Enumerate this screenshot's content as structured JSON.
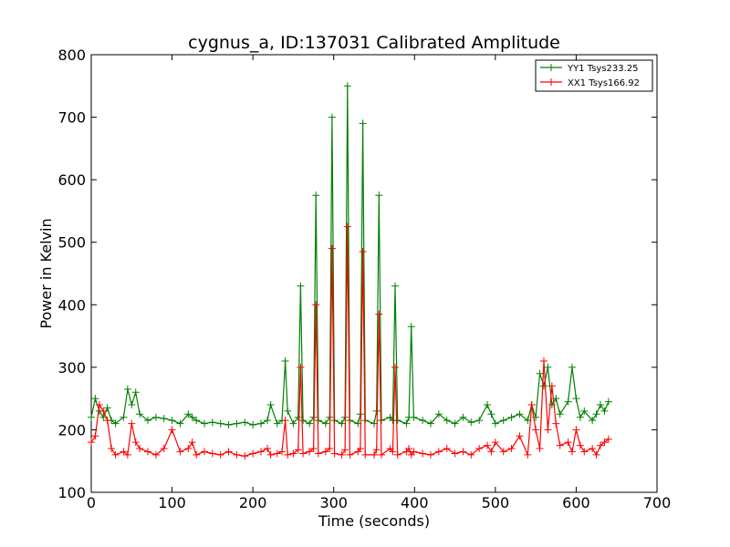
{
  "chart_data": {
    "type": "line",
    "title": "cygnus_a, ID:137031 Calibrated Amplitude",
    "xlabel": "Time (seconds)",
    "ylabel": "Power in Kelvin",
    "xlim": [
      0,
      700
    ],
    "ylim": [
      100,
      800
    ],
    "xticks": [
      "0",
      "100",
      "200",
      "300",
      "400",
      "500",
      "600",
      "700"
    ],
    "yticks": [
      "100",
      "200",
      "300",
      "400",
      "500",
      "600",
      "700",
      "800"
    ],
    "grid": false,
    "legend_position": "top-right",
    "series": [
      {
        "name": "YY1 Tsys233.25",
        "color": "#008000",
        "x": [
          0,
          5,
          10,
          15,
          20,
          25,
          30,
          40,
          45,
          50,
          55,
          60,
          70,
          80,
          90,
          100,
          110,
          120,
          125,
          130,
          140,
          150,
          160,
          170,
          180,
          190,
          200,
          210,
          218,
          222,
          230,
          236,
          240,
          243,
          250,
          256,
          259,
          262,
          270,
          275,
          278,
          281,
          290,
          295,
          298,
          301,
          310,
          314,
          317,
          320,
          330,
          333,
          336,
          339,
          350,
          353,
          356,
          359,
          370,
          373,
          376,
          379,
          390,
          393,
          396,
          399,
          410,
          420,
          430,
          440,
          450,
          460,
          470,
          480,
          490,
          495,
          500,
          510,
          520,
          530,
          540,
          545,
          550,
          555,
          560,
          565,
          570,
          575,
          580,
          590,
          595,
          600,
          605,
          610,
          620,
          625,
          630,
          635,
          640
        ],
        "y": [
          220,
          250,
          230,
          220,
          235,
          215,
          210,
          220,
          265,
          240,
          260,
          225,
          215,
          220,
          218,
          215,
          210,
          225,
          220,
          215,
          210,
          212,
          210,
          208,
          210,
          212,
          208,
          210,
          215,
          240,
          210,
          215,
          310,
          230,
          210,
          220,
          430,
          215,
          210,
          220,
          575,
          215,
          210,
          220,
          700,
          215,
          210,
          220,
          750,
          215,
          210,
          225,
          690,
          215,
          210,
          230,
          575,
          215,
          220,
          215,
          430,
          215,
          210,
          220,
          365,
          220,
          215,
          210,
          225,
          215,
          210,
          220,
          212,
          215,
          240,
          225,
          210,
          215,
          220,
          225,
          215,
          240,
          220,
          290,
          270,
          300,
          240,
          250,
          225,
          245,
          300,
          250,
          220,
          230,
          215,
          225,
          240,
          230,
          245
        ]
      },
      {
        "name": "XX1 Tsys166.92",
        "color": "#ff0000",
        "x": [
          0,
          5,
          10,
          15,
          20,
          25,
          30,
          40,
          45,
          50,
          55,
          60,
          70,
          80,
          90,
          100,
          110,
          120,
          125,
          130,
          140,
          150,
          160,
          170,
          180,
          190,
          200,
          210,
          218,
          222,
          230,
          236,
          240,
          243,
          250,
          256,
          259,
          262,
          270,
          275,
          278,
          281,
          290,
          295,
          298,
          301,
          310,
          314,
          317,
          320,
          330,
          333,
          336,
          339,
          350,
          353,
          356,
          359,
          370,
          373,
          376,
          379,
          390,
          393,
          396,
          399,
          410,
          420,
          430,
          440,
          450,
          460,
          470,
          480,
          490,
          495,
          500,
          510,
          520,
          530,
          540,
          545,
          550,
          555,
          560,
          565,
          570,
          575,
          580,
          590,
          595,
          600,
          605,
          610,
          620,
          625,
          630,
          635,
          640
        ],
        "y": [
          180,
          190,
          240,
          230,
          215,
          170,
          160,
          165,
          160,
          210,
          180,
          170,
          165,
          160,
          170,
          200,
          165,
          170,
          180,
          160,
          165,
          162,
          160,
          165,
          160,
          158,
          162,
          165,
          170,
          160,
          162,
          165,
          215,
          160,
          162,
          168,
          300,
          162,
          165,
          170,
          400,
          162,
          165,
          170,
          490,
          162,
          160,
          168,
          525,
          160,
          165,
          170,
          485,
          160,
          160,
          168,
          385,
          160,
          170,
          165,
          300,
          160,
          165,
          170,
          160,
          165,
          162,
          160,
          165,
          170,
          162,
          165,
          160,
          170,
          175,
          165,
          180,
          165,
          170,
          190,
          160,
          240,
          200,
          170,
          310,
          200,
          270,
          210,
          175,
          180,
          165,
          200,
          175,
          165,
          170,
          160,
          175,
          180,
          185
        ]
      }
    ]
  }
}
